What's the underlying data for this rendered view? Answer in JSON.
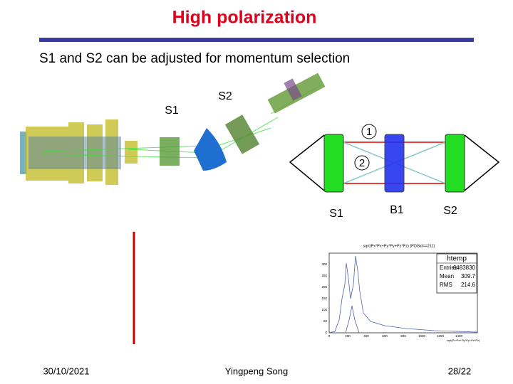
{
  "header": {
    "title": "High polarization",
    "subtitle": "S1 and S2 can be adjusted for momentum selection"
  },
  "beamline": {
    "s1_label": "S1",
    "s2_label": "S2"
  },
  "diagram": {
    "path1": "1",
    "path2": "2",
    "s1": "S1",
    "b1": "B1",
    "s2": "S2"
  },
  "histogram": {
    "title": "sqrt(Px*Px+Py*Py+Pz*Pz) {PDGid==211}",
    "x_label": "sqrt(Px*Px+Py*Py+Pz*Pz)",
    "stats": {
      "name": "htemp",
      "rows": [
        [
          "Entries",
          "6483830"
        ],
        [
          "Mean",
          "309.7"
        ],
        [
          "RMS",
          "214.6"
        ]
      ]
    },
    "yticks": [
      "0",
      "50",
      "100",
      "150",
      "200",
      "250",
      "300"
    ],
    "xticks": [
      "0",
      "200",
      "400",
      "600",
      "800",
      "1000",
      "1200",
      "1400"
    ]
  },
  "footer": {
    "date": "30/10/2021",
    "author": "Yingpeng Song",
    "page": "28/22"
  }
}
